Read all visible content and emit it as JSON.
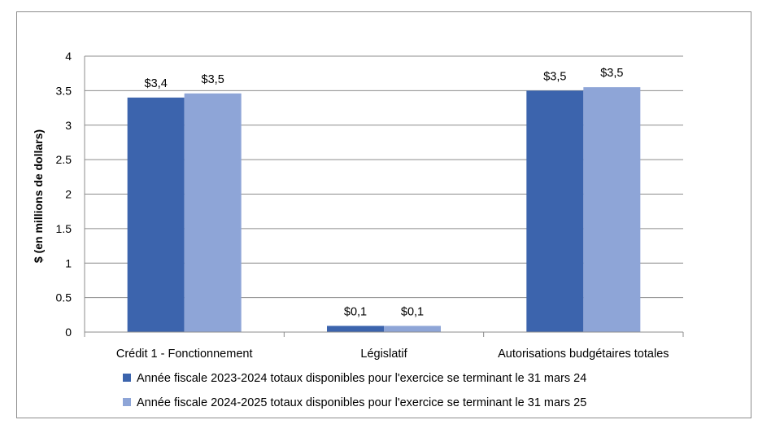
{
  "chart_data": {
    "type": "bar",
    "title": "",
    "xlabel": "",
    "ylabel": "$ (en millions de dollars)",
    "ylim": [
      0,
      4
    ],
    "yticks": [
      "0",
      "0.5",
      "1",
      "1.5",
      "2",
      "2.5",
      "3",
      "3.5",
      "4"
    ],
    "categories": [
      "Crédit 1 - Fonctionnement",
      "Législatif",
      "Autorisations budgétaires totales"
    ],
    "series": [
      {
        "name": "Année fiscale 2023-2024 totaux disponibles pour l'exercice se terminant le 31 mars 24",
        "color": "#3c64ad",
        "values": [
          3.4,
          0.09,
          3.5
        ],
        "labels": [
          "$3,4",
          "$0,1",
          "$3,5"
        ]
      },
      {
        "name": "Année fiscale 2024-2025 totaux disponibles pour l'exercice se terminant le 31 mars 25",
        "color": "#8ea5d7",
        "values": [
          3.46,
          0.09,
          3.55
        ],
        "labels": [
          "$3,5",
          "$0,1",
          "$3,5"
        ]
      }
    ],
    "grid": true,
    "legend_position": "bottom"
  }
}
